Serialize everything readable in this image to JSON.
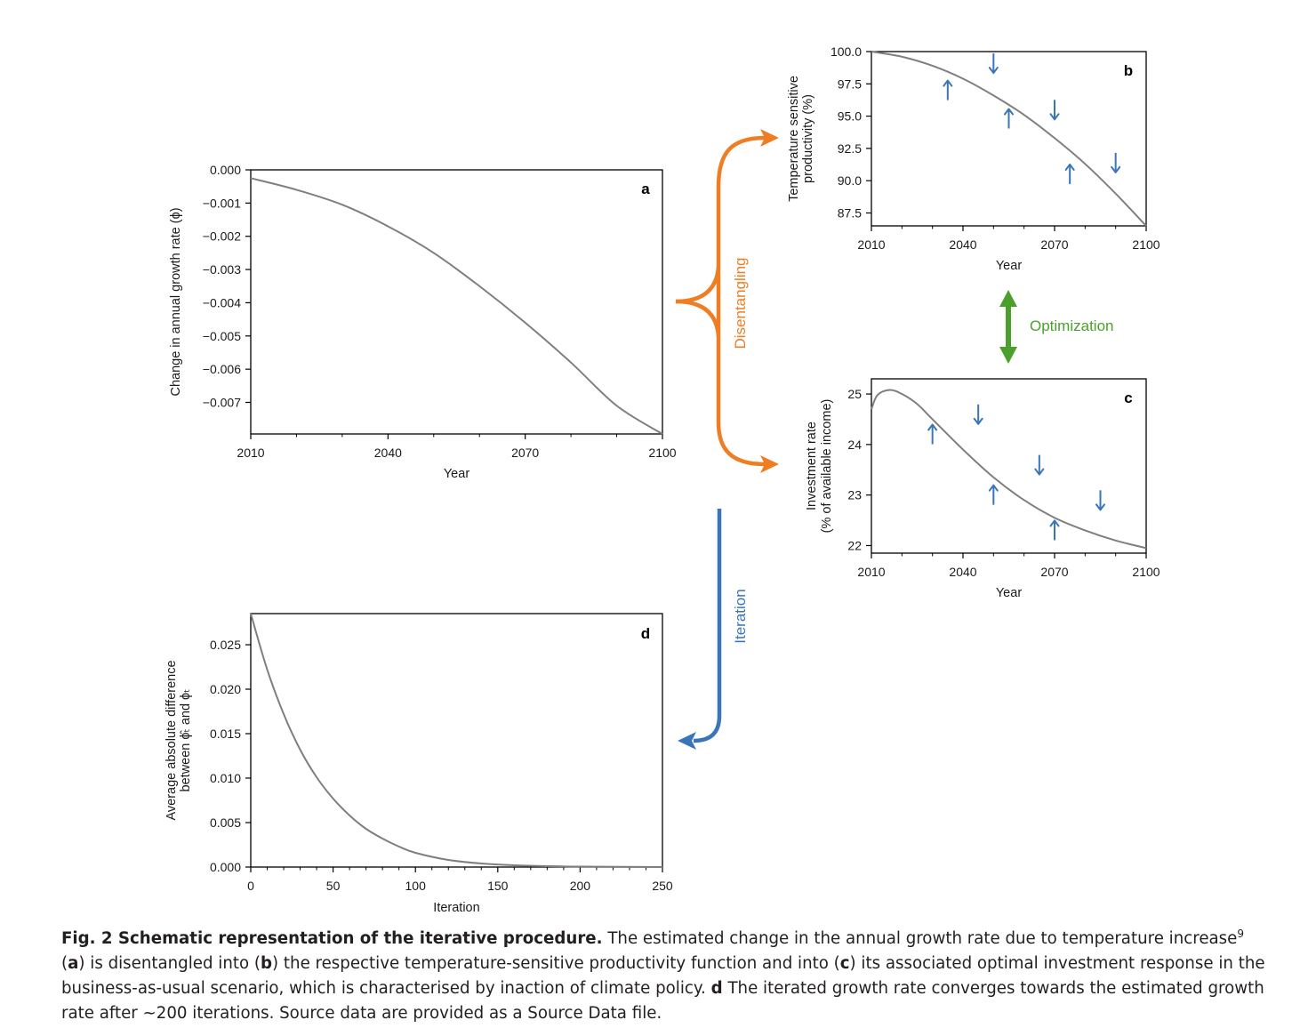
{
  "chart_data": [
    {
      "id": "a",
      "type": "line",
      "panel_letter": "a",
      "xlabel": "Year",
      "ylabel": "Change in annual growth rate (ϕ)",
      "xlim": [
        2010,
        2100
      ],
      "ylim": [
        -0.00795,
        0.0
      ],
      "xticks": [
        2010,
        2040,
        2070,
        2100
      ],
      "xtick_labels": [
        "2010",
        "2040",
        "2070",
        "2100"
      ],
      "yticks": [
        0.0,
        -0.001,
        -0.002,
        -0.003,
        -0.004,
        -0.005,
        -0.006,
        -0.007
      ],
      "ytick_labels": [
        "0.000",
        "−0.001",
        "−0.002",
        "−0.003",
        "−0.004",
        "−0.005",
        "−0.006",
        "−0.007"
      ],
      "line_color": "#7f7f7f",
      "x": [
        2010,
        2020,
        2030,
        2040,
        2050,
        2060,
        2070,
        2080,
        2090,
        2100
      ],
      "y": [
        -0.00025,
        -0.0006,
        -0.00105,
        -0.0017,
        -0.0025,
        -0.0035,
        -0.0046,
        -0.0058,
        -0.0071,
        -0.00795
      ]
    },
    {
      "id": "b",
      "type": "line",
      "panel_letter": "b",
      "xlabel": "Year",
      "ylabel": [
        "Temperature sensitive",
        "productivity (%)"
      ],
      "xlim": [
        2010,
        2100
      ],
      "ylim": [
        86.5,
        100.0
      ],
      "xticks": [
        2010,
        2040,
        2070,
        2100
      ],
      "xtick_labels": [
        "2010",
        "2040",
        "2070",
        "2100"
      ],
      "yticks": [
        100.0,
        97.5,
        95.0,
        92.5,
        90.0,
        87.5
      ],
      "ytick_labels": [
        "100.0",
        "97.5",
        "95.0",
        "92.5",
        "90.0",
        "87.5"
      ],
      "line_color": "#7f7f7f",
      "x": [
        2010,
        2020,
        2030,
        2040,
        2050,
        2060,
        2070,
        2080,
        2090,
        2100
      ],
      "y": [
        100.0,
        99.6,
        98.9,
        97.9,
        96.6,
        95.1,
        93.3,
        91.3,
        89.0,
        86.5
      ],
      "arrows": [
        {
          "x": 2035,
          "y": 97.0,
          "direction": "up"
        },
        {
          "x": 2050,
          "y": 99.1,
          "direction": "down"
        },
        {
          "x": 2055,
          "y": 94.8,
          "direction": "up"
        },
        {
          "x": 2070,
          "y": 95.5,
          "direction": "down"
        },
        {
          "x": 2075,
          "y": 90.5,
          "direction": "up"
        },
        {
          "x": 2090,
          "y": 91.4,
          "direction": "down"
        }
      ],
      "arrow_color": "#3a75b8"
    },
    {
      "id": "c",
      "type": "line",
      "panel_letter": "c",
      "xlabel": "Year",
      "ylabel": [
        "Investment rate",
        "(% of available income)"
      ],
      "xlim": [
        2010,
        2100
      ],
      "ylim": [
        21.85,
        25.3
      ],
      "xticks": [
        2010,
        2040,
        2070,
        2100
      ],
      "xtick_labels": [
        "2010",
        "2040",
        "2070",
        "2100"
      ],
      "yticks": [
        25,
        24,
        23,
        22
      ],
      "ytick_labels": [
        "25",
        "24",
        "23",
        "22"
      ],
      "line_color": "#7f7f7f",
      "x": [
        2010,
        2012,
        2016,
        2020,
        2025,
        2030,
        2040,
        2050,
        2060,
        2070,
        2080,
        2090,
        2100
      ],
      "y": [
        24.7,
        24.98,
        25.08,
        25.0,
        24.8,
        24.5,
        23.9,
        23.35,
        22.9,
        22.55,
        22.3,
        22.1,
        21.95
      ],
      "arrows": [
        {
          "x": 2030,
          "y": 24.2,
          "direction": "up"
        },
        {
          "x": 2045,
          "y": 24.6,
          "direction": "down"
        },
        {
          "x": 2050,
          "y": 23.0,
          "direction": "up"
        },
        {
          "x": 2065,
          "y": 23.6,
          "direction": "down"
        },
        {
          "x": 2070,
          "y": 22.3,
          "direction": "up"
        },
        {
          "x": 2085,
          "y": 22.9,
          "direction": "down"
        }
      ],
      "arrow_color": "#3a75b8"
    },
    {
      "id": "d",
      "type": "line",
      "panel_letter": "d",
      "xlabel": "Iteration",
      "ylabel": [
        "Average absolute difference",
        "between ϕ̂ₜ and ϕₜ"
      ],
      "xlim": [
        0,
        250
      ],
      "ylim": [
        0.0,
        0.0285
      ],
      "xticks": [
        0,
        50,
        100,
        150,
        200,
        250
      ],
      "xtick_labels": [
        "0",
        "50",
        "100",
        "150",
        "200",
        "250"
      ],
      "yticks": [
        0.0,
        0.005,
        0.01,
        0.015,
        0.02,
        0.025
      ],
      "ytick_labels": [
        "0.000",
        "0.005",
        "0.010",
        "0.015",
        "0.020",
        "0.025"
      ],
      "line_color": "#7f7f7f",
      "x": [
        0,
        10,
        20,
        30,
        40,
        50,
        60,
        70,
        80,
        90,
        100,
        120,
        140,
        160,
        180,
        200,
        250
      ],
      "y": [
        0.0285,
        0.0222,
        0.0172,
        0.0132,
        0.0101,
        0.0077,
        0.0058,
        0.0043,
        0.0032,
        0.0023,
        0.0016,
        0.0008,
        0.0004,
        0.0002,
        0.0001,
        5e-05,
        0.0
      ]
    }
  ],
  "flows": {
    "disentangling": {
      "label": "Disentangling",
      "color": "#ee7d23"
    },
    "optimization": {
      "label": "Optimization",
      "color": "#4ba02c"
    },
    "iteration": {
      "label": "Iteration",
      "color": "#3a75b8"
    }
  },
  "caption": {
    "title": "Fig. 2 Schematic representation of the iterative procedure.",
    "text1": " The estimated change in the annual growth rate due to temperature increase",
    "ref": "9",
    "open_a": " (",
    "letter_a": "a",
    "text2": ") is disentangled into (",
    "letter_b": "b",
    "text3": ") the respective temperature-sensitive productivity function and into (",
    "letter_c": "c",
    "text4": ") its associated optimal investment response in the business-as-usual scenario, which is characterised by inaction of climate policy. ",
    "letter_d": "d",
    "text5": " The iterated growth rate converges towards the estimated growth rate after ~200 iterations. Source data are provided as a Source Data file."
  }
}
